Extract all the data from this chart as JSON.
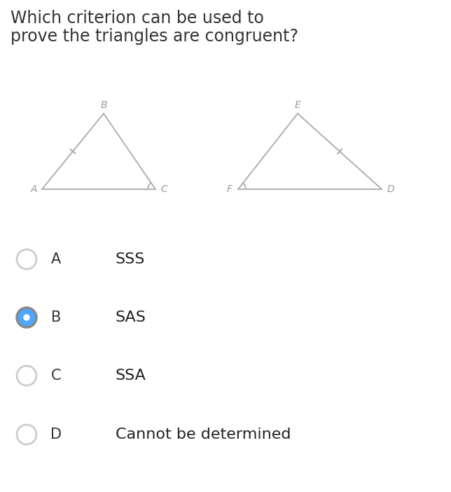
{
  "question_line1": "Which criterion can be used to",
  "question_line2": "prove the triangles are congruent?",
  "bg_color": "#ffffff",
  "options": [
    {
      "letter": "A",
      "text": "SSS",
      "selected": false
    },
    {
      "letter": "B",
      "text": "SAS",
      "selected": true
    },
    {
      "letter": "C",
      "text": "SSA",
      "selected": false
    },
    {
      "letter": "D",
      "text": "Cannot be determined",
      "selected": false
    }
  ],
  "radio_unselected_color": "#cccccc",
  "radio_selected_fill": "#4da6ff",
  "radio_selected_border": "#888888",
  "triangle_color": "#aaaaaa",
  "label_color": "#999999",
  "tick_color": "#aaaaaa",
  "angle_color": "#aaaaaa",
  "question_color": "#333333",
  "option_letter_color": "#333333",
  "option_text_color": "#222222"
}
